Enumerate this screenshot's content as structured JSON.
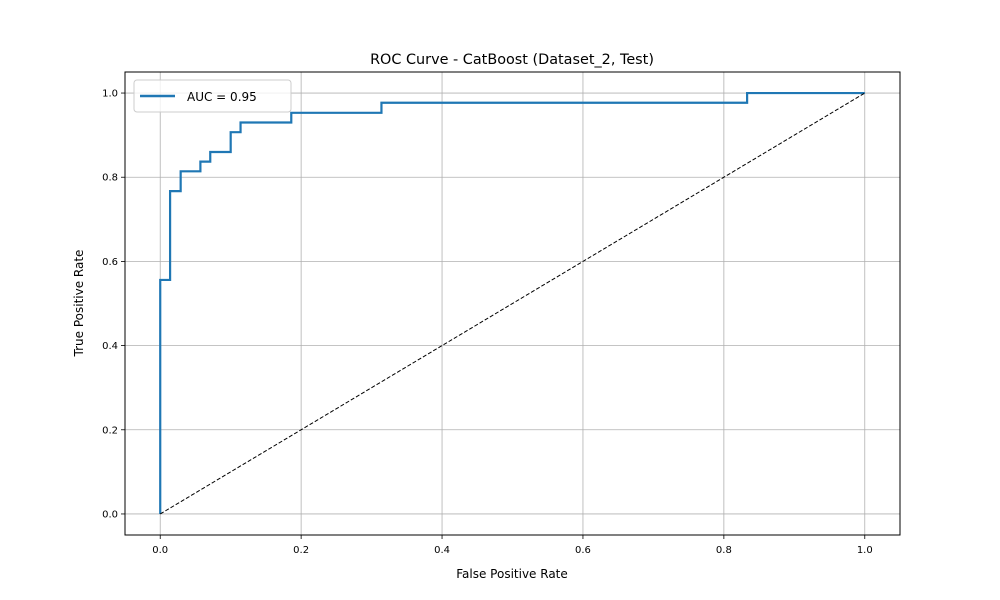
{
  "chart_data": {
    "type": "line",
    "title": "ROC Curve - CatBoost (Dataset_2, Test)",
    "xlabel": "False Positive Rate",
    "ylabel": "True Positive Rate",
    "xlim": [
      -0.05,
      1.05
    ],
    "ylim": [
      -0.05,
      1.05
    ],
    "xticks": [
      0.0,
      0.2,
      0.4,
      0.6,
      0.8,
      1.0
    ],
    "xtick_labels": [
      "0.0",
      "0.2",
      "0.4",
      "0.6",
      "0.8",
      "1.0"
    ],
    "yticks": [
      0.0,
      0.2,
      0.4,
      0.6,
      0.8,
      1.0
    ],
    "ytick_labels": [
      "0.0",
      "0.2",
      "0.4",
      "0.6",
      "0.8",
      "1.0"
    ],
    "grid": true,
    "legend_position": "upper-left",
    "series": [
      {
        "name": "AUC = 0.95",
        "color": "#1f77b4",
        "x": [
          0.0,
          0.0,
          0.014,
          0.014,
          0.029,
          0.029,
          0.057,
          0.057,
          0.071,
          0.071,
          0.1,
          0.1,
          0.114,
          0.114,
          0.186,
          0.186,
          0.314,
          0.314,
          0.833,
          0.833,
          1.0
        ],
        "y": [
          0.0,
          0.556,
          0.556,
          0.767,
          0.767,
          0.814,
          0.814,
          0.837,
          0.837,
          0.86,
          0.86,
          0.907,
          0.907,
          0.93,
          0.93,
          0.953,
          0.953,
          0.977,
          0.977,
          1.0,
          1.0
        ]
      },
      {
        "role": "reference-diagonal",
        "color": "#000000",
        "dashed": true,
        "x": [
          0.0,
          1.0
        ],
        "y": [
          0.0,
          1.0
        ]
      }
    ]
  }
}
